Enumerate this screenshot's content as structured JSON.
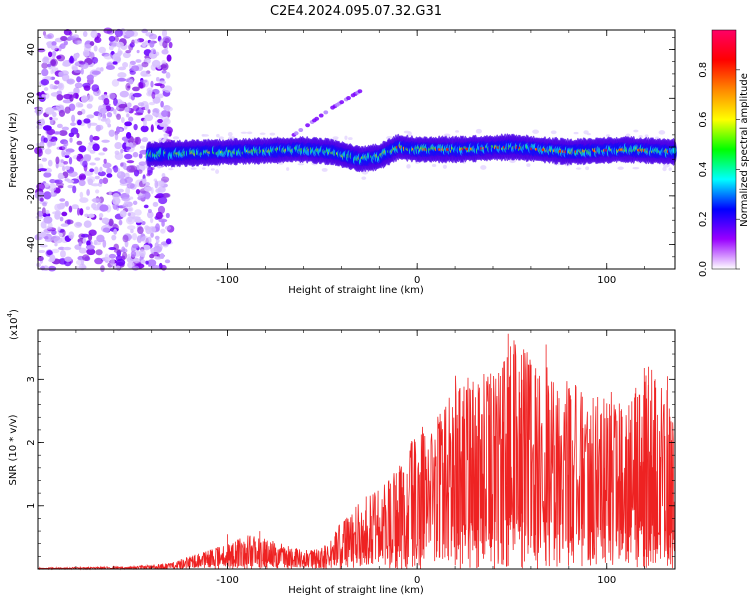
{
  "title": "C2E4.2024.095.07.32.G31",
  "chart_data": [
    {
      "type": "heatmap",
      "xlabel": "Height of straight line (km)",
      "ylabel": "Frequency (Hz)",
      "xlim": [
        -200,
        136
      ],
      "ylim": [
        -50,
        48
      ],
      "xticks": [
        -100,
        0,
        100
      ],
      "xtick_labels": [
        "-100",
        "0",
        "100"
      ],
      "yticks": [
        -40,
        -20,
        0,
        20,
        40
      ],
      "ytick_labels": [
        "-40",
        "-20",
        "0",
        "20",
        "40"
      ],
      "colorbar": {
        "label": "Normalized spectral amplitude",
        "range": [
          0,
          0.96
        ],
        "ticks": [
          0.0,
          0.2,
          0.4,
          0.6,
          0.8
        ],
        "tick_labels": [
          "0.0",
          "0.2",
          "0.4",
          "0.6",
          "0.8"
        ],
        "colors": [
          "#ffffff",
          "#9900ff",
          "#0000ff",
          "#00ffff",
          "#00ff00",
          "#ffff00",
          "#ff8800",
          "#ff0000",
          "#ff0066"
        ]
      },
      "features": {
        "noise_region_x": [
          -200,
          -135
        ],
        "ridge_center": [
          [
            -140,
            -3
          ],
          [
            -100,
            -2
          ],
          [
            -60,
            -1
          ],
          [
            -45,
            -2
          ],
          [
            -30,
            -5
          ],
          [
            -20,
            -4
          ],
          [
            -10,
            0
          ],
          [
            0,
            -1
          ],
          [
            20,
            -1
          ],
          [
            50,
            0
          ],
          [
            80,
            -2
          ],
          [
            110,
            -1
          ],
          [
            136,
            -2
          ]
        ],
        "ridge_high_x": [
          -15,
          136
        ],
        "diagonal_trace": [
          [
            -65,
            5
          ],
          [
            -45,
            16
          ],
          [
            -30,
            23
          ]
        ]
      }
    },
    {
      "type": "line",
      "xlabel": "Height of straight line (km)",
      "ylabel": "SNR (10 * v/v)",
      "yscale_label": "(x10",
      "yscale_exp": "4",
      "yscale_close": ")",
      "xlim": [
        -200,
        136
      ],
      "ylim": [
        0,
        3.78
      ],
      "xticks": [
        -100,
        0,
        100
      ],
      "xtick_labels": [
        "-100",
        "0",
        "100"
      ],
      "yticks": [
        1,
        2,
        3
      ],
      "ytick_labels": [
        "1",
        "2",
        "3"
      ],
      "series": [
        {
          "color": "#ee2222",
          "envelope": [
            [
              -200,
              0.02
            ],
            [
              -150,
              0.04
            ],
            [
              -130,
              0.1
            ],
            [
              -115,
              0.25
            ],
            [
              -100,
              0.4
            ],
            [
              -90,
              0.55
            ],
            [
              -70,
              0.4
            ],
            [
              -60,
              0.3
            ],
            [
              -50,
              0.35
            ],
            [
              -40,
              0.75
            ],
            [
              -30,
              1.1
            ],
            [
              -20,
              1.3
            ],
            [
              -10,
              1.6
            ],
            [
              0,
              2.2
            ],
            [
              10,
              2.4
            ],
            [
              20,
              3.1
            ],
            [
              30,
              3.0
            ],
            [
              40,
              3.2
            ],
            [
              48,
              3.7
            ],
            [
              60,
              3.4
            ],
            [
              70,
              3.2
            ],
            [
              80,
              3.0
            ],
            [
              90,
              2.8
            ],
            [
              100,
              2.9
            ],
            [
              110,
              2.5
            ],
            [
              120,
              3.2
            ],
            [
              130,
              3.1
            ],
            [
              136,
              2.2
            ]
          ],
          "spikes": [
            [
              -100,
              0.55
            ],
            [
              -83,
              0.6
            ],
            [
              48,
              3.72
            ],
            [
              68,
              3.55
            ],
            [
              122,
              3.2
            ],
            [
              132,
              3.05
            ]
          ]
        }
      ]
    }
  ]
}
